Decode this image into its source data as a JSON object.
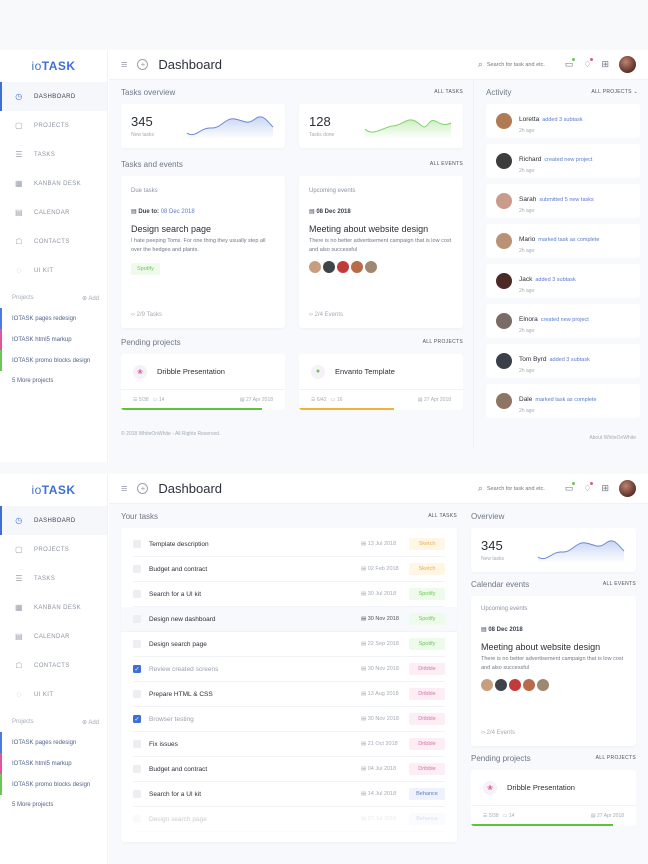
{
  "app": {
    "logo_prefix": "io",
    "logo_suffix": "TASK",
    "page_title": "Dashboard"
  },
  "topbar": {
    "search_placeholder": "Search for task and etc.",
    "icons": [
      "menu-icon",
      "add-circle-icon",
      "search-icon",
      "chat-icon",
      "bell-icon",
      "grid-icon",
      "user-avatar"
    ]
  },
  "sidebar": {
    "items": [
      {
        "label": "DASHBOARD",
        "icon": "◷",
        "active": true
      },
      {
        "label": "PROJECTS",
        "icon": "▢"
      },
      {
        "label": "TASKS",
        "icon": "☰"
      },
      {
        "label": "KANBAN DESK",
        "icon": "▦"
      },
      {
        "label": "CALENDAR",
        "icon": "▤"
      },
      {
        "label": "CONTACTS",
        "icon": "☖"
      },
      {
        "label": "UI KIT",
        "icon": "◌"
      }
    ],
    "projects_label": "Projects",
    "add_label": "⊕ Add",
    "projects": [
      {
        "label": "IOTASK pages redesign",
        "color": "#4a7be0"
      },
      {
        "label": "IOTASK html5 markup",
        "color": "#e0559b"
      },
      {
        "label": "IOTASK promo blocks design",
        "color": "#6cc656"
      }
    ],
    "more_projects": "5 More projects"
  },
  "screen1": {
    "tasks_overview": {
      "title": "Tasks overview",
      "link": "ALL TASKS",
      "stats": [
        {
          "value": "345",
          "label": "New tasks",
          "color": "#6b87d6"
        },
        {
          "value": "128",
          "label": "Tasks done",
          "color": "#7fd36b"
        }
      ]
    },
    "tasks_events": {
      "title": "Tasks and events",
      "link": "ALL EVENTS",
      "due": {
        "heading": "Due tasks",
        "due_label": "Due to:",
        "due_date": "08 Dec 2018",
        "title": "Design search page",
        "desc": "I hate peeping Toms. For one thing they usually step all over the hedges and plants.",
        "tag": "Spotify",
        "footer": "2/9 Tasks"
      },
      "upcoming": {
        "heading": "Upcoming events",
        "date": "08 Dec 2018",
        "title": "Meeting about website design",
        "desc": "There is no better advertisement campaign that is low cost and also successful",
        "footer": "2/4 Events"
      }
    },
    "pending": {
      "title": "Pending projects",
      "link": "ALL PROJECTS",
      "projects": [
        {
          "name": "Dribble Presentation",
          "icon": "❀",
          "icon_color": "#e0559b",
          "tasks": "5/38",
          "comments": "14",
          "date": "27 Apr 2018",
          "bar_color": "#5ec23f",
          "progress": "86%"
        },
        {
          "name": "Envanto Template",
          "icon": "●",
          "icon_color": "#6cc656",
          "tasks": "6/42",
          "comments": "16",
          "date": "27 Apr 2018",
          "bar_color": "#f2b233",
          "progress": "58%"
        }
      ]
    },
    "activity": {
      "title": "Activity",
      "filter": "ALL PROJECTS",
      "items": [
        {
          "name": "Loretta",
          "action": "added 3 subtask",
          "time": "2h ago",
          "avatar": "#b07a55"
        },
        {
          "name": "Richard",
          "action": "created new project",
          "time": "2h ago",
          "avatar": "#3d3d3d"
        },
        {
          "name": "Sarah",
          "action": "submitted 5 new tasks",
          "time": "2h ago",
          "avatar": "#c99b8a"
        },
        {
          "name": "Mario",
          "action": "marked task as complete",
          "time": "2h ago",
          "avatar": "#b99275"
        },
        {
          "name": "Jack",
          "action": "added 3 subtask",
          "time": "2h ago",
          "avatar": "#4b2a25"
        },
        {
          "name": "Elnora",
          "action": "created new project",
          "time": "2h ago",
          "avatar": "#7a6b66"
        },
        {
          "name": "Tom Byrd",
          "action": "added 3 subtask",
          "time": "2h ago",
          "avatar": "#3a3f4a"
        },
        {
          "name": "Dale",
          "action": "marked task as complete",
          "time": "2h ago",
          "avatar": "#8d7463"
        }
      ]
    },
    "footer": {
      "copyright": "© 2018 WhiteOnWhite - All Rights Reserved.",
      "about": "About WhiteOnWhite"
    }
  },
  "screen2": {
    "your_tasks": {
      "title": "Your tasks",
      "link": "ALL TASKS",
      "rows": [
        {
          "name": "Template description",
          "date": "13 Jul 2018",
          "tag": "Sketch",
          "checked": false
        },
        {
          "name": "Budget and contract",
          "date": "02 Feb 2018",
          "tag": "Sketch",
          "checked": false
        },
        {
          "name": "Search for a UI kit",
          "date": "30 Jul 2018",
          "tag": "Spotify",
          "checked": false
        },
        {
          "name": "Design new dashboard",
          "date": "30 Nov 2018",
          "tag": "Spotify",
          "checked": false,
          "highlight": true
        },
        {
          "name": "Design search page",
          "date": "22 Sep 2018",
          "tag": "Spotify",
          "checked": false
        },
        {
          "name": "Review created screens",
          "date": "30 Nov 2018",
          "tag": "Dribble",
          "checked": true
        },
        {
          "name": "Prepare HTML & CSS",
          "date": "13 Aug 2018",
          "tag": "Dribble",
          "checked": false
        },
        {
          "name": "Browser testing",
          "date": "30 Nov 2018",
          "tag": "Dribble",
          "checked": true
        },
        {
          "name": "Fix issues",
          "date": "21 Oct 2018",
          "tag": "Dribble",
          "checked": false
        },
        {
          "name": "Budget and contract",
          "date": "04 Jul 2018",
          "tag": "Dribble",
          "checked": false
        },
        {
          "name": "Search for a UI kit",
          "date": "14 Jul 2018",
          "tag": "Behance",
          "checked": false
        },
        {
          "name": "Design search page",
          "date": "27 Jul 2018",
          "tag": "Behance",
          "checked": false,
          "faded": true
        }
      ]
    },
    "overview": {
      "title": "Overview",
      "value": "345",
      "label": "New tasks"
    },
    "calendar": {
      "title": "Calendar events",
      "link": "ALL EVENTS",
      "heading": "Upcoming events",
      "date": "08 Dec 2018",
      "event_title": "Meeting about website design",
      "desc": "There is no better advertisement campaign that is low cost and also successful",
      "footer": "2/4 Events"
    },
    "pending": {
      "title": "Pending projects",
      "link": "ALL PROJECTS",
      "name": "Dribble Presentation",
      "tasks": "5/38",
      "comments": "14",
      "date": "27 Apr 2018"
    }
  },
  "colors": {
    "accent": "#3f6fd4",
    "green": "#5ec23f",
    "orange": "#f2b233",
    "pink": "#e0559b"
  }
}
